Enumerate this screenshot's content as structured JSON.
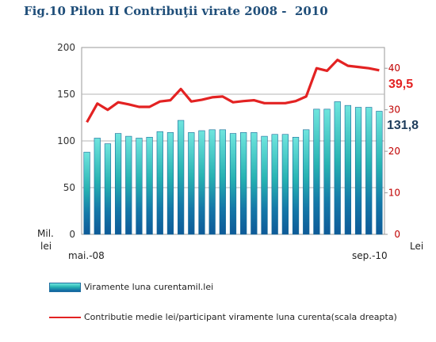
{
  "title": "Fig.10 Pilon II Contribuţii virate 2008 -  2010",
  "chart_data": {
    "type": "bar+line",
    "left_axis": {
      "label_line1": "Mil.",
      "label_line2": "lei",
      "range": [
        0,
        200
      ],
      "ticks": [
        "0",
        "50",
        "100",
        "150",
        "200"
      ]
    },
    "right_axis": {
      "label": "Lei",
      "range": [
        0,
        45
      ],
      "ticks": [
        "0",
        "10",
        "20",
        "30",
        "40"
      ]
    },
    "x_start_label": "mai.-08",
    "x_end_label": "sep.-10",
    "grid": true,
    "series": [
      {
        "name": "Viramente luna curentamil.lei",
        "axis": "left",
        "type": "bar",
        "values": [
          88,
          103,
          97,
          108,
          105,
          103,
          104,
          110,
          109,
          122,
          109,
          111,
          112,
          112,
          108,
          109,
          109,
          105,
          107,
          107,
          104,
          112,
          134,
          134,
          142,
          138,
          136,
          136,
          131.8
        ],
        "end_label": "131,8",
        "color": "#1F3D5C"
      },
      {
        "name": "Contributie medie lei/participant viramente luna curenta(scala dreapta)",
        "axis": "right",
        "type": "line",
        "values": [
          27,
          31.5,
          30,
          31.8,
          31.3,
          30.7,
          30.7,
          32,
          32.3,
          35,
          32,
          32.4,
          33,
          33.2,
          31.8,
          32.1,
          32.3,
          31.6,
          31.6,
          31.6,
          32.1,
          33.2,
          40,
          39.4,
          42,
          40.6,
          40.3,
          40,
          39.5
        ],
        "end_label": "39,5",
        "color": "#E32222"
      }
    ]
  }
}
